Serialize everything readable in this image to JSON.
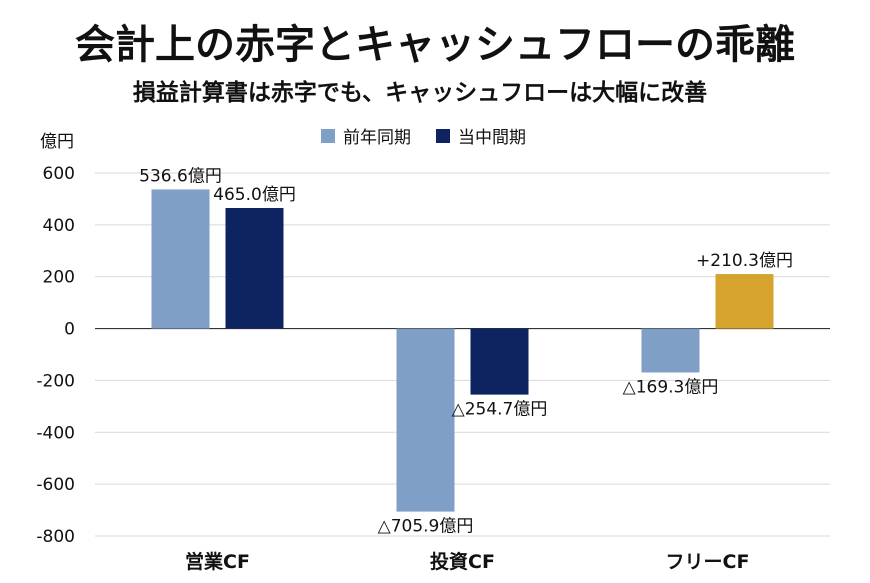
{
  "chart_data": {
    "type": "bar",
    "title": "会計上の赤字とキャッシュフローの乖離",
    "subtitle": "損益計算書は赤字でも、キャッシュフローは大幅に改善",
    "ylabel": "億円",
    "ylim": [
      -800,
      600
    ],
    "yticks": [
      600,
      400,
      200,
      0,
      -200,
      -400,
      -600,
      -800
    ],
    "grid": true,
    "legend_position": "top-center",
    "categories": [
      "営業CF",
      "投資CF",
      "フリーCF"
    ],
    "series": [
      {
        "name": "前年同期",
        "color": "#7f9fc6",
        "values": [
          536.6,
          -705.9,
          -169.3
        ],
        "labels": [
          "536.6億円",
          "△705.9億円",
          "△169.3億円"
        ]
      },
      {
        "name": "当中間期",
        "color": "#0d2460",
        "highlight_color": "#d6a42e",
        "values": [
          465.0,
          -254.7,
          210.3
        ],
        "labels": [
          "465.0億円",
          "△254.7億円",
          "+210.3億円"
        ]
      }
    ]
  }
}
